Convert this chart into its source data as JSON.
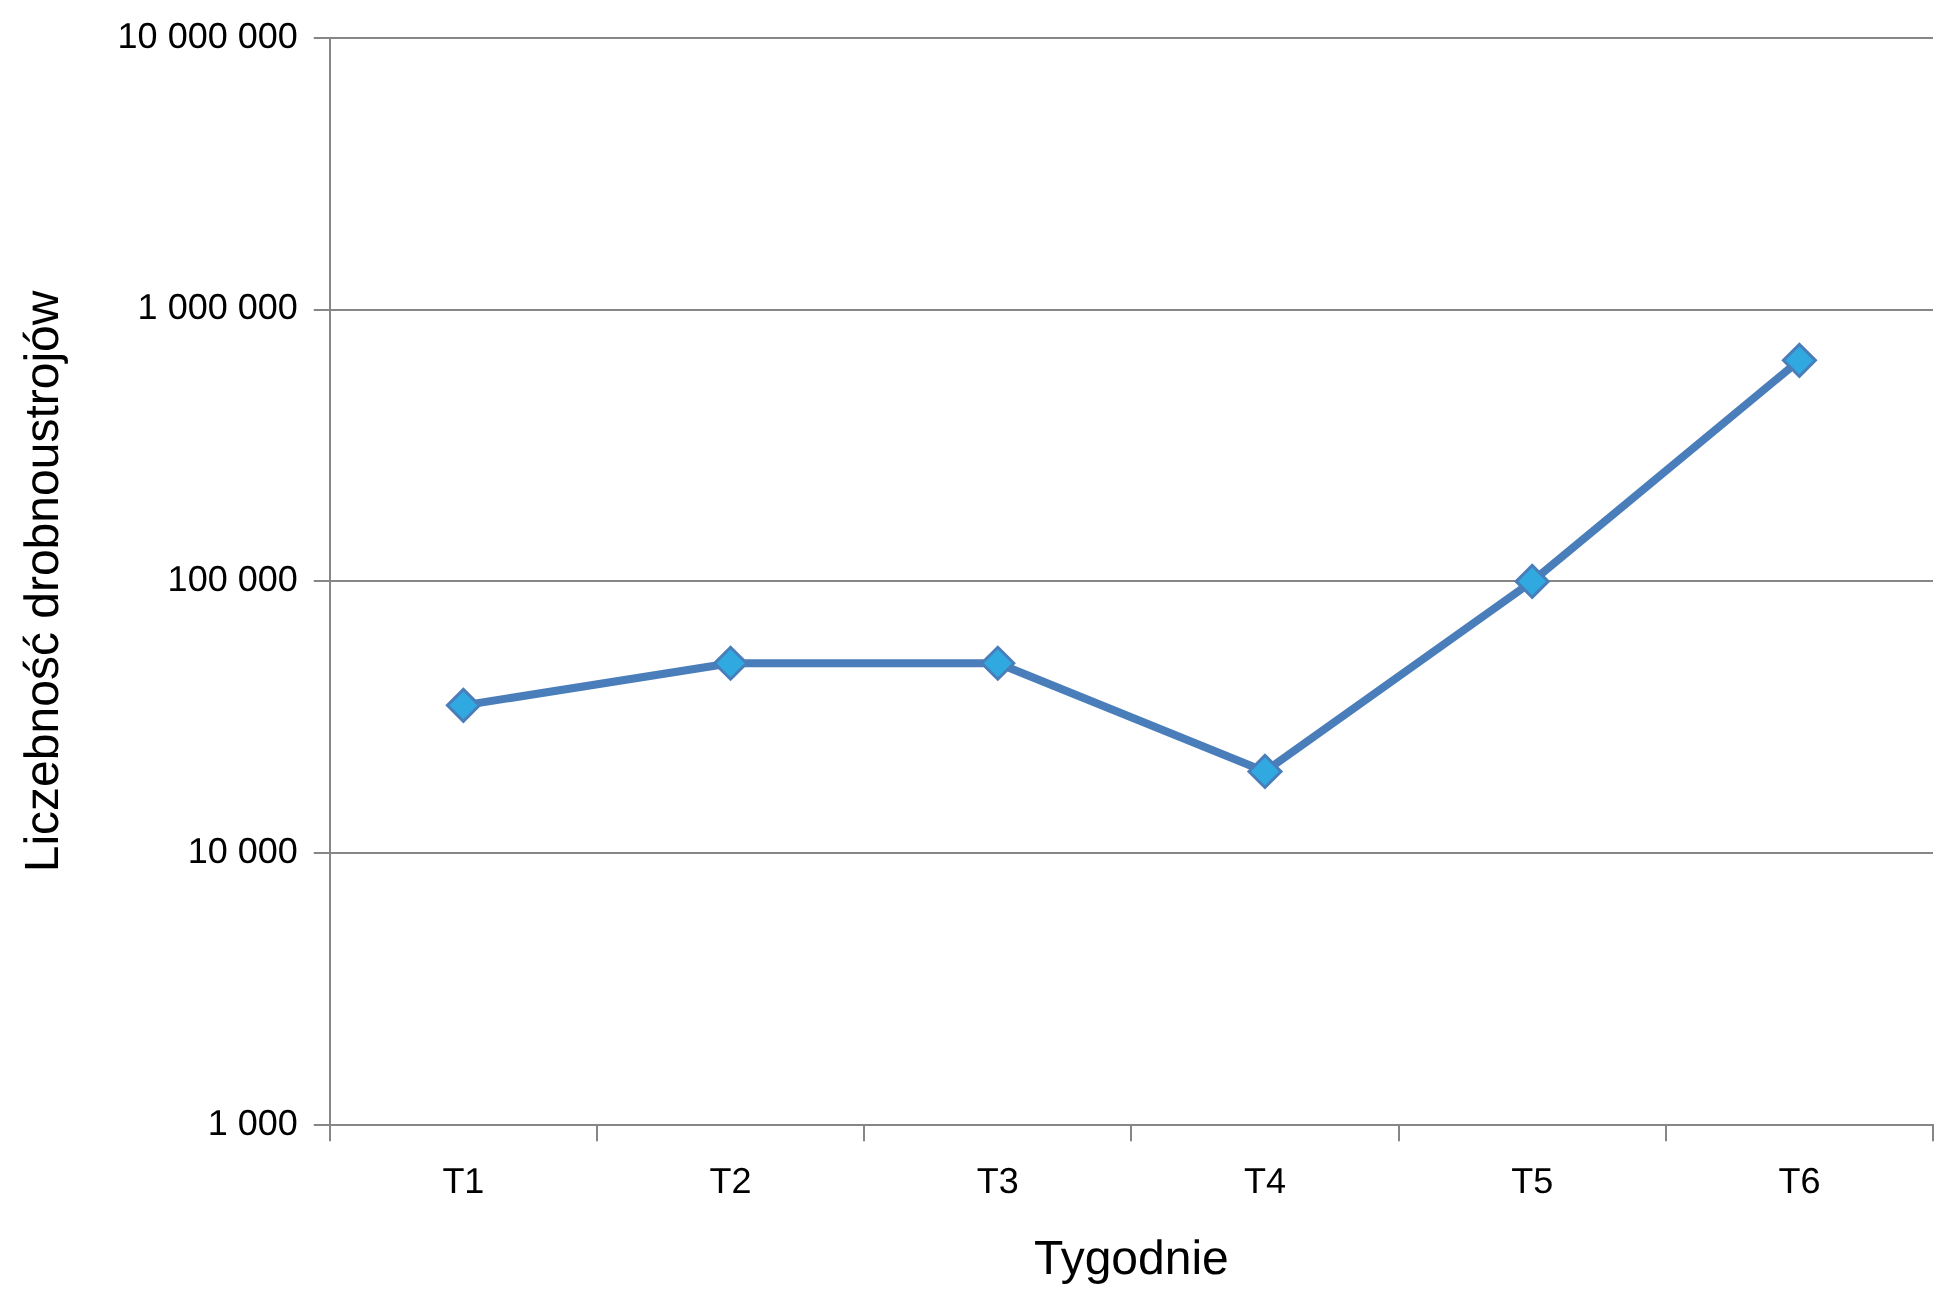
{
  "chart_data": {
    "type": "line",
    "xlabel": "Tygodnie",
    "ylabel": "Liczebność drobnoustrojów",
    "categories": [
      "T1",
      "T2",
      "T3",
      "T4",
      "T5",
      "T6"
    ],
    "series": [
      {
        "color": "#4a7ebb",
        "values": [
          35000,
          50000,
          50000,
          20000,
          100000,
          650000
        ]
      }
    ],
    "log": true,
    "ylim": [
      1000,
      10000000
    ],
    "yticks": [
      {
        "value": 1000,
        "label": "1 000"
      },
      {
        "value": 10000,
        "label": "10 000"
      },
      {
        "value": 100000,
        "label": "100 000"
      },
      {
        "value": 1000000,
        "label": "1 000 000"
      },
      {
        "value": 10000000,
        "label": "10 000 000"
      }
    ],
    "grid": "y",
    "legend": false,
    "marker": "diamond",
    "line_style": "solid"
  }
}
